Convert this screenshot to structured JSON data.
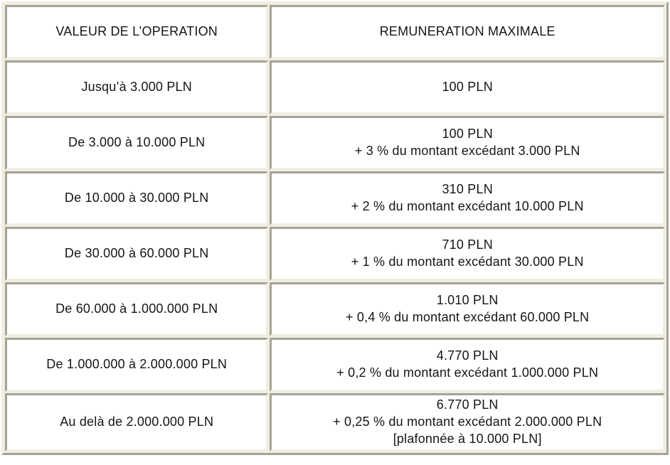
{
  "table": {
    "headers": {
      "operation": "VALEUR DE L’OPERATION",
      "remuneration": "REMUNERATION MAXIMALE"
    },
    "rows": [
      {
        "operation": "Jusqu’à 3.000 PLN",
        "remuneration": [
          "100 PLN"
        ]
      },
      {
        "operation": "De 3.000 à 10.000 PLN",
        "remuneration": [
          "100 PLN",
          "+ 3 % du montant excédant 3.000 PLN"
        ]
      },
      {
        "operation": "De 10.000 à 30.000 PLN",
        "remuneration": [
          "310 PLN",
          "+ 2 % du montant excédant 10.000 PLN"
        ]
      },
      {
        "operation": "De 30.000 à 60.000 PLN",
        "remuneration": [
          "710 PLN",
          "+ 1 % du montant excédant 30.000 PLN"
        ]
      },
      {
        "operation": "De 60.000 à 1.000.000 PLN",
        "remuneration": [
          "1.010 PLN",
          "+ 0,4 % du montant excédant 60.000 PLN"
        ]
      },
      {
        "operation": "De 1.000.000 à 2.000.000 PLN",
        "remuneration": [
          "4.770 PLN",
          "+ 0,2 % du montant excédant 1.000.000 PLN"
        ]
      },
      {
        "operation": "Au delà de 2.000.000 PLN",
        "remuneration": [
          "6.770 PLN",
          "+ 0,25 % du montant excédant 2.000.000 PLN",
          "[plafonnée à 10.000 PLN]"
        ]
      }
    ]
  },
  "colors": {
    "cell_background": "#ffffff",
    "spacing_background": "#f0eee1",
    "border_dark": "#a5a396",
    "border_light": "#f0eee1",
    "text": "#151515"
  }
}
